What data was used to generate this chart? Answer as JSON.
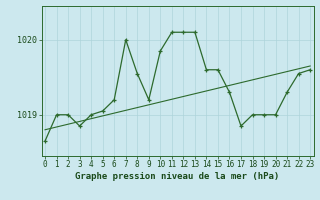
{
  "title": "Graphe pression niveau de la mer (hPa)",
  "background_color": "#cce8ee",
  "line_color": "#2d6a2d",
  "x_values": [
    0,
    1,
    2,
    3,
    4,
    5,
    6,
    7,
    8,
    9,
    10,
    11,
    12,
    13,
    14,
    15,
    16,
    17,
    18,
    19,
    20,
    21,
    22,
    23
  ],
  "y_main": [
    1018.65,
    1019.0,
    1019.0,
    1018.85,
    1019.0,
    1019.05,
    1019.2,
    1020.0,
    1019.55,
    1019.2,
    1019.85,
    1020.1,
    1020.1,
    1020.1,
    1019.6,
    1019.6,
    1019.3,
    1018.85,
    1019.0,
    1019.0,
    1019.0,
    1019.3,
    1019.55,
    1019.6
  ],
  "trend_x": [
    0,
    23
  ],
  "trend_y": [
    1018.8,
    1019.65
  ],
  "yticks": [
    1019,
    1020
  ],
  "ylim": [
    1018.45,
    1020.45
  ],
  "xlim": [
    -0.3,
    23.3
  ],
  "grid_color": "#aed4db",
  "font_color": "#1a4a1a",
  "title_fontsize": 6.5,
  "tick_fontsize": 5.5
}
